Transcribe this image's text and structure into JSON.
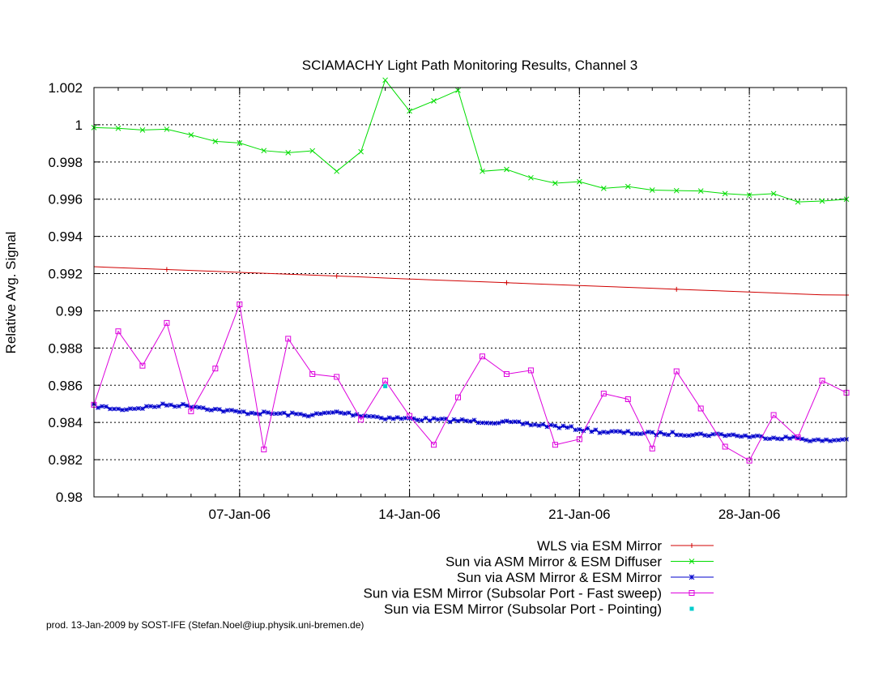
{
  "credit": "prod. 13-Jan-2009 by SOST-IFE (Stefan.Noel@iup.physik.uni-bremen.de)",
  "chart_data": {
    "type": "line",
    "title": "SCIAMACHY Light Path Monitoring Results, Channel 3",
    "xlabel": "",
    "ylabel": "Relative Avg. Signal",
    "xlim": [
      "2006-01-01",
      "2006-02-01"
    ],
    "ylim": [
      0.98,
      1.002
    ],
    "x_ticks": [
      "07-Jan-06",
      "14-Jan-06",
      "21-Jan-06",
      "28-Jan-06"
    ],
    "x_tick_dates": [
      "2006-01-07",
      "2006-01-14",
      "2006-01-21",
      "2006-01-28"
    ],
    "y_ticks": [
      "0.98",
      "0.982",
      "0.984",
      "0.986",
      "0.988",
      "0.99",
      "0.992",
      "0.994",
      "0.996",
      "0.998",
      "1",
      "1.002"
    ],
    "y_tick_values": [
      0.98,
      0.982,
      0.984,
      0.986,
      0.988,
      0.99,
      0.992,
      0.994,
      0.996,
      0.998,
      1.0,
      1.002
    ],
    "grid": true,
    "legend_position": "bottom-right, below plot",
    "series": [
      {
        "name": "WLS via ESM Mirror",
        "color": "#d00000",
        "marker": "plus",
        "marker_every": 7,
        "points": [
          [
            "2006-01-01",
            0.99237
          ],
          [
            "2006-01-02",
            0.99232
          ],
          [
            "2006-01-03",
            0.99227
          ],
          [
            "2006-01-04",
            0.99222
          ],
          [
            "2006-01-05",
            0.99217
          ],
          [
            "2006-01-06",
            0.99212
          ],
          [
            "2006-01-07",
            0.99207
          ],
          [
            "2006-01-08",
            0.99202
          ],
          [
            "2006-01-09",
            0.99197
          ],
          [
            "2006-01-10",
            0.99192
          ],
          [
            "2006-01-11",
            0.99187
          ],
          [
            "2006-01-12",
            0.99182
          ],
          [
            "2006-01-13",
            0.99176
          ],
          [
            "2006-01-14",
            0.99171
          ],
          [
            "2006-01-15",
            0.99166
          ],
          [
            "2006-01-16",
            0.99161
          ],
          [
            "2006-01-17",
            0.99156
          ],
          [
            "2006-01-18",
            0.99151
          ],
          [
            "2006-01-19",
            0.99146
          ],
          [
            "2006-01-20",
            0.99141
          ],
          [
            "2006-01-21",
            0.99136
          ],
          [
            "2006-01-22",
            0.99131
          ],
          [
            "2006-01-23",
            0.99126
          ],
          [
            "2006-01-24",
            0.99121
          ],
          [
            "2006-01-25",
            0.99116
          ],
          [
            "2006-01-26",
            0.99111
          ],
          [
            "2006-01-27",
            0.99106
          ],
          [
            "2006-01-28",
            0.99101
          ],
          [
            "2006-01-29",
            0.99096
          ],
          [
            "2006-01-30",
            0.99091
          ],
          [
            "2006-01-31",
            0.99086
          ],
          [
            "2006-02-01",
            0.99085
          ]
        ]
      },
      {
        "name": "Sun via ASM Mirror & ESM Diffuser",
        "color": "#00dd00",
        "marker": "cross",
        "points": [
          [
            "2006-01-01",
            0.99985
          ],
          [
            "2006-01-02",
            0.99981
          ],
          [
            "2006-01-03",
            0.99972
          ],
          [
            "2006-01-04",
            0.99976
          ],
          [
            "2006-01-05",
            0.99945
          ],
          [
            "2006-01-06",
            0.99911
          ],
          [
            "2006-01-07",
            0.99902
          ],
          [
            "2006-01-08",
            0.99861
          ],
          [
            "2006-01-09",
            0.9985
          ],
          [
            "2006-01-10",
            0.9986
          ],
          [
            "2006-01-11",
            0.9975
          ],
          [
            "2006-01-12",
            0.99855
          ],
          [
            "2006-01-13",
            1.0024
          ],
          [
            "2006-01-14",
            1.00074
          ],
          [
            "2006-01-15",
            1.00128
          ],
          [
            "2006-01-16",
            1.00185
          ],
          [
            "2006-01-17",
            0.9975
          ],
          [
            "2006-01-18",
            0.9976
          ],
          [
            "2006-01-19",
            0.99715
          ],
          [
            "2006-01-20",
            0.99686
          ],
          [
            "2006-01-21",
            0.99694
          ],
          [
            "2006-01-22",
            0.99658
          ],
          [
            "2006-01-23",
            0.99668
          ],
          [
            "2006-01-24",
            0.99649
          ],
          [
            "2006-01-25",
            0.99646
          ],
          [
            "2006-01-26",
            0.99644
          ],
          [
            "2006-01-27",
            0.9963
          ],
          [
            "2006-01-28",
            0.99622
          ],
          [
            "2006-01-29",
            0.9963
          ],
          [
            "2006-01-30",
            0.99585
          ],
          [
            "2006-01-31",
            0.9959
          ],
          [
            "2006-02-01",
            0.996
          ]
        ]
      },
      {
        "name": "Sun via ASM Mirror & ESM Mirror",
        "color": "#0000cc",
        "marker": "star",
        "dense_samples_per_day": 6,
        "points": [
          [
            "2006-01-01",
            0.9849
          ],
          [
            "2006-01-02",
            0.9847
          ],
          [
            "2006-01-03",
            0.9848
          ],
          [
            "2006-01-04",
            0.98495
          ],
          [
            "2006-01-05",
            0.9849
          ],
          [
            "2006-01-06",
            0.9847
          ],
          [
            "2006-01-07",
            0.98455
          ],
          [
            "2006-01-08",
            0.9845
          ],
          [
            "2006-01-09",
            0.98445
          ],
          [
            "2006-01-10",
            0.9844
          ],
          [
            "2006-01-11",
            0.98455
          ],
          [
            "2006-01-12",
            0.9844
          ],
          [
            "2006-01-13",
            0.98425
          ],
          [
            "2006-01-14",
            0.9842
          ],
          [
            "2006-01-15",
            0.98415
          ],
          [
            "2006-01-16",
            0.9841
          ],
          [
            "2006-01-17",
            0.98405
          ],
          [
            "2006-01-18",
            0.984
          ],
          [
            "2006-01-19",
            0.9839
          ],
          [
            "2006-01-20",
            0.9838
          ],
          [
            "2006-01-21",
            0.98365
          ],
          [
            "2006-01-22",
            0.9835
          ],
          [
            "2006-01-23",
            0.98345
          ],
          [
            "2006-01-24",
            0.9834
          ],
          [
            "2006-01-25",
            0.9834
          ],
          [
            "2006-01-26",
            0.98335
          ],
          [
            "2006-01-27",
            0.98335
          ],
          [
            "2006-01-28",
            0.98325
          ],
          [
            "2006-01-29",
            0.9832
          ],
          [
            "2006-01-30",
            0.98315
          ],
          [
            "2006-01-31",
            0.983
          ],
          [
            "2006-02-01",
            0.9831
          ]
        ]
      },
      {
        "name": "Sun via ESM Mirror (Subsolar Port - Fast sweep)",
        "color": "#dd00dd",
        "marker": "square",
        "points": [
          [
            "2006-01-01",
            0.98495
          ],
          [
            "2006-01-02",
            0.9889
          ],
          [
            "2006-01-03",
            0.98705
          ],
          [
            "2006-01-04",
            0.98935
          ],
          [
            "2006-01-05",
            0.9846
          ],
          [
            "2006-01-06",
            0.9869
          ],
          [
            "2006-01-07",
            0.99035
          ],
          [
            "2006-01-08",
            0.98255
          ],
          [
            "2006-01-09",
            0.9885
          ],
          [
            "2006-01-10",
            0.9866
          ],
          [
            "2006-01-11",
            0.98645
          ],
          [
            "2006-01-12",
            0.98415
          ],
          [
            "2006-01-13",
            0.98625
          ],
          [
            "2006-01-14",
            0.98435
          ],
          [
            "2006-01-15",
            0.9828
          ],
          [
            "2006-01-16",
            0.98535
          ],
          [
            "2006-01-17",
            0.98755
          ],
          [
            "2006-01-18",
            0.9866
          ],
          [
            "2006-01-19",
            0.9868
          ],
          [
            "2006-01-20",
            0.9828
          ],
          [
            "2006-01-21",
            0.9831
          ],
          [
            "2006-01-22",
            0.98555
          ],
          [
            "2006-01-23",
            0.98525
          ],
          [
            "2006-01-24",
            0.9826
          ],
          [
            "2006-01-25",
            0.98675
          ],
          [
            "2006-01-26",
            0.98475
          ],
          [
            "2006-01-27",
            0.9827
          ],
          [
            "2006-01-28",
            0.98195
          ],
          [
            "2006-01-29",
            0.9844
          ],
          [
            "2006-01-30",
            0.9832
          ],
          [
            "2006-01-31",
            0.98625
          ],
          [
            "2006-02-01",
            0.9856
          ]
        ]
      },
      {
        "name": "Sun via ESM Mirror (Subsolar Port - Pointing)",
        "color": "#00cccc",
        "marker": "dot",
        "points": [
          [
            "2006-01-13",
            0.98595
          ]
        ]
      }
    ]
  }
}
